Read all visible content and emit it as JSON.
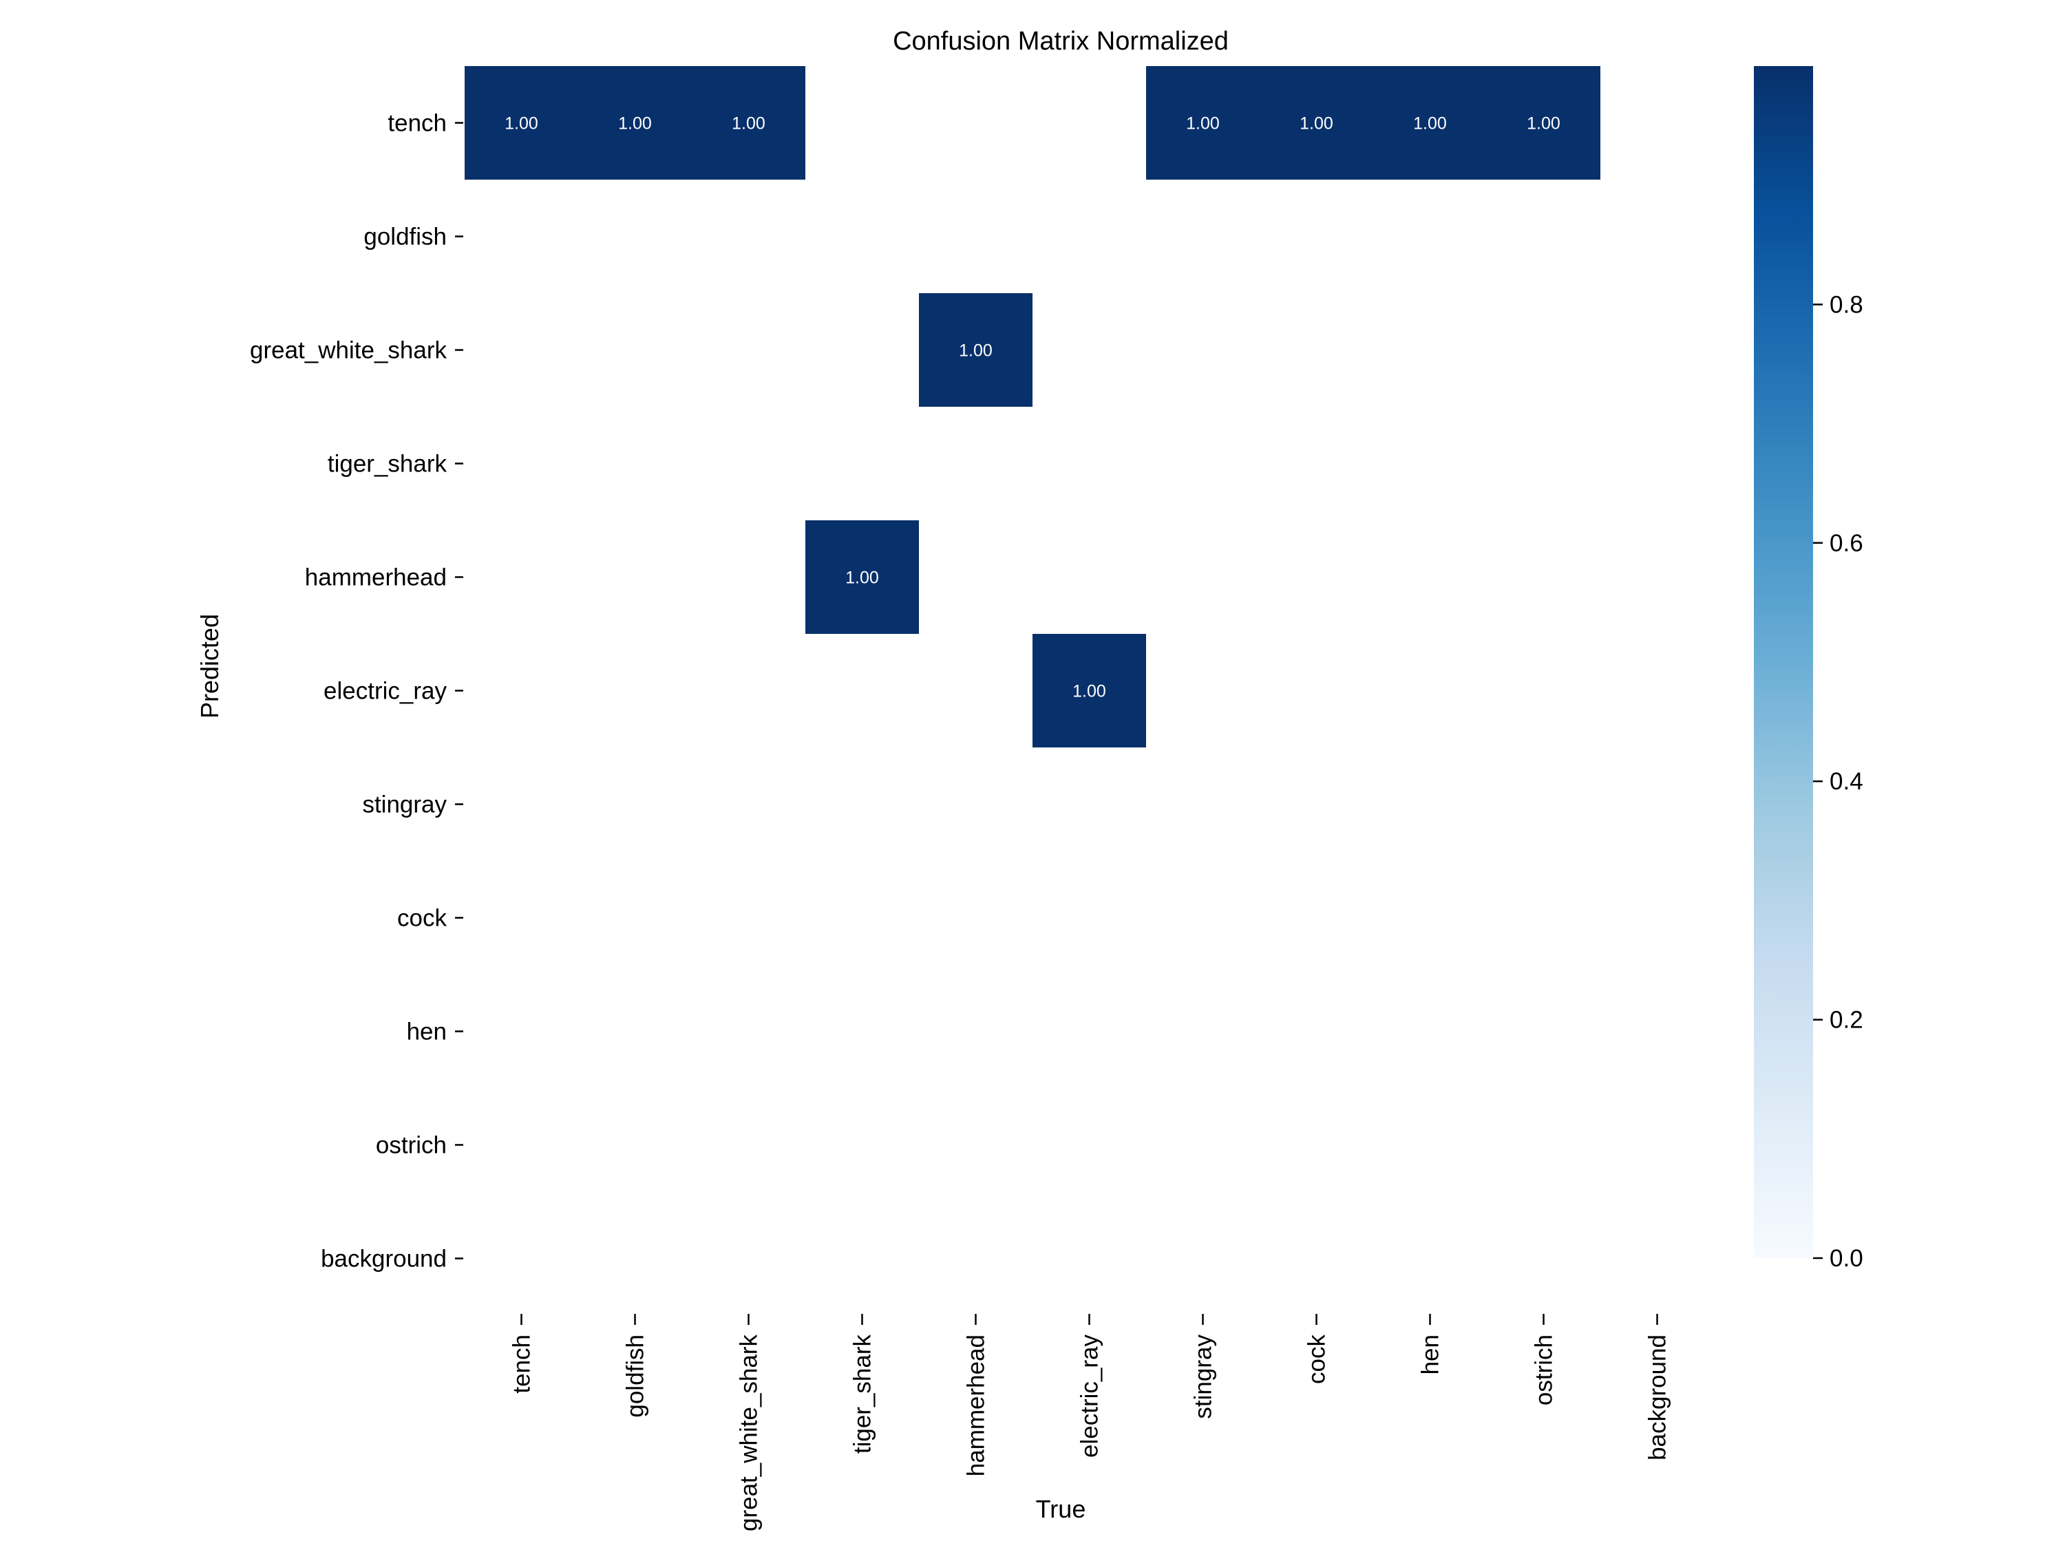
{
  "chart_data": {
    "type": "heatmap",
    "title": "Confusion Matrix Normalized",
    "xlabel": "True",
    "ylabel": "Predicted",
    "x_categories": [
      "tench",
      "goldfish",
      "great_white_shark",
      "tiger_shark",
      "hammerhead",
      "electric_ray",
      "stingray",
      "cock",
      "hen",
      "ostrich",
      "background"
    ],
    "y_categories": [
      "tench",
      "goldfish",
      "great_white_shark",
      "tiger_shark",
      "hammerhead",
      "electric_ray",
      "stingray",
      "cock",
      "hen",
      "ostrich",
      "background"
    ],
    "cells": [
      {
        "x": "tench",
        "y": "tench",
        "value": 1.0,
        "label": "1.00"
      },
      {
        "x": "goldfish",
        "y": "tench",
        "value": 1.0,
        "label": "1.00"
      },
      {
        "x": "great_white_shark",
        "y": "tench",
        "value": 1.0,
        "label": "1.00"
      },
      {
        "x": "stingray",
        "y": "tench",
        "value": 1.0,
        "label": "1.00"
      },
      {
        "x": "cock",
        "y": "tench",
        "value": 1.0,
        "label": "1.00"
      },
      {
        "x": "hen",
        "y": "tench",
        "value": 1.0,
        "label": "1.00"
      },
      {
        "x": "ostrich",
        "y": "tench",
        "value": 1.0,
        "label": "1.00"
      },
      {
        "x": "hammerhead",
        "y": "great_white_shark",
        "value": 1.0,
        "label": "1.00"
      },
      {
        "x": "tiger_shark",
        "y": "hammerhead",
        "value": 1.0,
        "label": "1.00"
      },
      {
        "x": "electric_ray",
        "y": "electric_ray",
        "value": 1.0,
        "label": "1.00"
      }
    ],
    "colorbar": {
      "range": [
        0.0,
        1.0
      ],
      "ticks": [
        0.0,
        0.2,
        0.4,
        0.6,
        0.8
      ],
      "tick_labels": [
        "0.0",
        "0.2",
        "0.4",
        "0.6",
        "0.8"
      ],
      "colormap": "Blues"
    },
    "grid": false
  },
  "colors": {
    "cell_max": "#08306b",
    "background": "#ffffff"
  }
}
